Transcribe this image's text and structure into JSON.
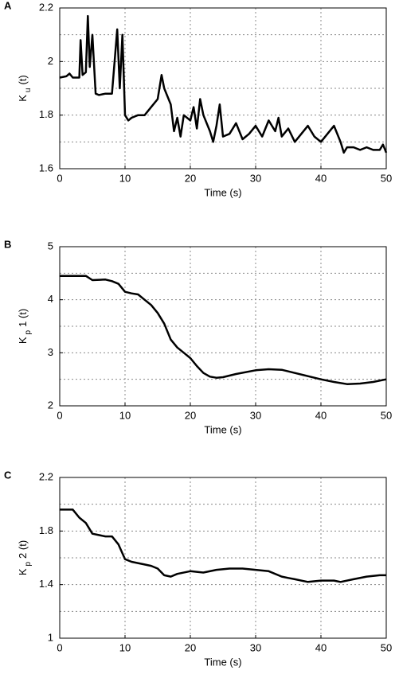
{
  "chart_data": [
    {
      "type": "line",
      "label": "A",
      "xlabel": "Time (s)",
      "ylabel": [
        "K",
        "u",
        "(t)"
      ],
      "color": "#000000",
      "grid": true,
      "xlim": [
        0,
        50
      ],
      "xticks": [
        0,
        10,
        20,
        30,
        40,
        50
      ],
      "ylim": [
        1.6,
        2.2
      ],
      "yticks": [
        1.6,
        1.8,
        2,
        2.2
      ],
      "yminorticks": [
        1.7,
        1.9,
        2.1
      ],
      "x": [
        0,
        1,
        1.5,
        2,
        3,
        3.2,
        3.5,
        4,
        4.3,
        4.6,
        5,
        5.5,
        6,
        7,
        8,
        8.8,
        9.2,
        9.6,
        10,
        10.5,
        11,
        12,
        13,
        14,
        15,
        15.6,
        16,
        17,
        17.5,
        18,
        18.5,
        19,
        20,
        20.5,
        21,
        21.5,
        22,
        23,
        23.5,
        24,
        24.5,
        25,
        26,
        27,
        28,
        29,
        30,
        31,
        32,
        33,
        33.5,
        34,
        35,
        36,
        37,
        38,
        39,
        40,
        41,
        42,
        43,
        43.5,
        44,
        45,
        46,
        47,
        48,
        49,
        49.5,
        50
      ],
      "values": [
        1.94,
        1.945,
        1.955,
        1.94,
        1.94,
        2.08,
        1.95,
        1.96,
        2.17,
        1.98,
        2.1,
        1.88,
        1.875,
        1.88,
        1.88,
        2.12,
        1.9,
        2.1,
        1.8,
        1.78,
        1.79,
        1.8,
        1.8,
        1.83,
        1.86,
        1.95,
        1.9,
        1.84,
        1.74,
        1.79,
        1.72,
        1.8,
        1.78,
        1.83,
        1.75,
        1.86,
        1.8,
        1.74,
        1.7,
        1.76,
        1.84,
        1.72,
        1.73,
        1.77,
        1.71,
        1.73,
        1.76,
        1.72,
        1.78,
        1.74,
        1.79,
        1.72,
        1.75,
        1.7,
        1.73,
        1.76,
        1.72,
        1.7,
        1.73,
        1.76,
        1.7,
        1.66,
        1.68,
        1.68,
        1.67,
        1.68,
        1.67,
        1.67,
        1.69,
        1.66
      ]
    },
    {
      "type": "line",
      "label": "B",
      "xlabel": "Time (s)",
      "ylabel": [
        "K",
        "p",
        "1 (t)"
      ],
      "color": "#000000",
      "grid": true,
      "xlim": [
        0,
        50
      ],
      "xticks": [
        0,
        10,
        20,
        30,
        40,
        50
      ],
      "ylim": [
        2,
        5
      ],
      "yticks": [
        2,
        3,
        4,
        5
      ],
      "yminorticks": [
        2.5,
        3.5,
        4.5
      ],
      "x": [
        0,
        4,
        5,
        7,
        8,
        9,
        10,
        11,
        12,
        13,
        14,
        15,
        16,
        17,
        18,
        19,
        20,
        21,
        22,
        23,
        24,
        25,
        27,
        30,
        32,
        34,
        36,
        38,
        40,
        42,
        44,
        46,
        48,
        50
      ],
      "values": [
        4.45,
        4.45,
        4.37,
        4.38,
        4.35,
        4.3,
        4.15,
        4.12,
        4.1,
        4.0,
        3.9,
        3.75,
        3.55,
        3.25,
        3.1,
        3.0,
        2.9,
        2.75,
        2.62,
        2.55,
        2.53,
        2.54,
        2.6,
        2.67,
        2.69,
        2.68,
        2.62,
        2.56,
        2.5,
        2.45,
        2.41,
        2.42,
        2.45,
        2.5
      ]
    },
    {
      "type": "line",
      "label": "C",
      "xlabel": "Time (s)",
      "ylabel": [
        "K",
        "p",
        "2 (t)"
      ],
      "color": "#000000",
      "grid": true,
      "xlim": [
        0,
        50
      ],
      "xticks": [
        0,
        10,
        20,
        30,
        40,
        50
      ],
      "ylim": [
        1,
        2.2
      ],
      "yticks": [
        1,
        1.4,
        1.8,
        2.2
      ],
      "yminorticks": [
        1.2,
        1.6,
        2.0
      ],
      "x": [
        0,
        2,
        3,
        4,
        5,
        7,
        8,
        9,
        10,
        11,
        13,
        14,
        15,
        16,
        17,
        18,
        20,
        22,
        24,
        26,
        28,
        30,
        32,
        34,
        35,
        36,
        38,
        40,
        42,
        43,
        45,
        47,
        49,
        50
      ],
      "values": [
        1.96,
        1.96,
        1.9,
        1.86,
        1.78,
        1.76,
        1.76,
        1.7,
        1.59,
        1.57,
        1.55,
        1.54,
        1.52,
        1.47,
        1.46,
        1.48,
        1.5,
        1.49,
        1.51,
        1.52,
        1.52,
        1.51,
        1.5,
        1.46,
        1.45,
        1.44,
        1.42,
        1.43,
        1.43,
        1.42,
        1.44,
        1.46,
        1.47,
        1.47
      ]
    }
  ]
}
